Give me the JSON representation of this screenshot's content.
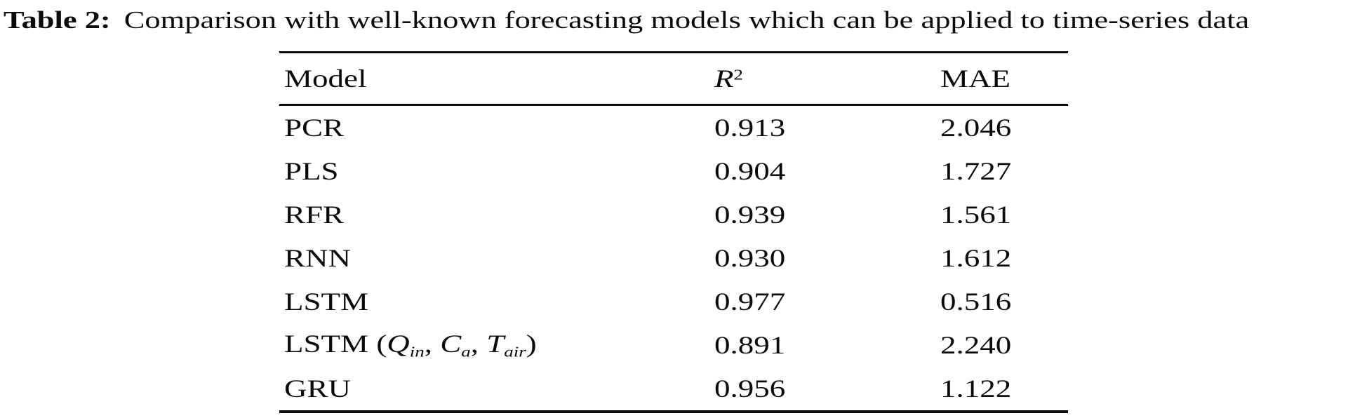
{
  "page": {
    "background_color": "#ffffff",
    "text_color": "#0a0a0a"
  },
  "caption": {
    "label": "Table 2:",
    "text": "Comparison with well-known forecasting models which can be applied to time-series data"
  },
  "table": {
    "headers": {
      "model": "Model",
      "r2_base": "R",
      "r2_sup": "2",
      "mae": "MAE"
    },
    "rows": [
      {
        "model": "PCR",
        "r2": "0.913",
        "mae": "2.046"
      },
      {
        "model": "PLS",
        "r2": "0.904",
        "mae": "1.727"
      },
      {
        "model": "RFR",
        "r2": "0.939",
        "mae": "1.561"
      },
      {
        "model": "RNN",
        "r2": "0.930",
        "mae": "1.612"
      },
      {
        "model": "LSTM",
        "r2": "0.977",
        "mae": "0.516"
      },
      {
        "model": [
          {
            "t": "LSTM ("
          },
          {
            "t": "Q",
            "i": true
          },
          {
            "t": "in",
            "sub": true
          },
          {
            "t": ", "
          },
          {
            "t": "C",
            "i": true
          },
          {
            "t": "a",
            "sub": true
          },
          {
            "t": ", "
          },
          {
            "t": "T",
            "i": true
          },
          {
            "t": "air",
            "sub": true
          },
          {
            "t": ")"
          }
        ],
        "r2": "0.891",
        "mae": "2.240"
      },
      {
        "model": "GRU",
        "r2": "0.956",
        "mae": "1.122"
      }
    ]
  }
}
